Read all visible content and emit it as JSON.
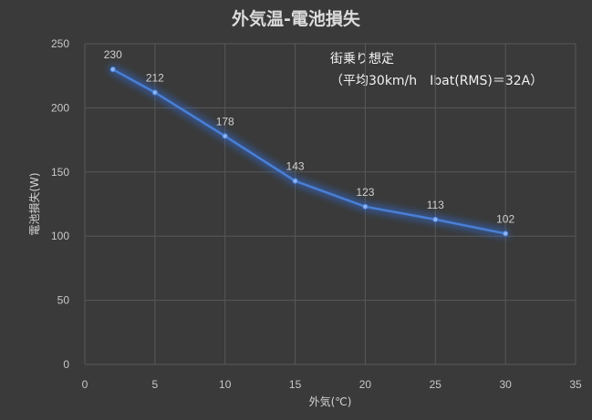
{
  "chart_data": {
    "type": "line",
    "title": "外気温-電池損失",
    "annotation": [
      "街乗り想定",
      "（平均30km/h　Ibat(RMS)＝32A）"
    ],
    "xlabel": "外気(℃)",
    "ylabel": "電池損失(W)",
    "x": [
      2,
      5,
      10,
      15,
      20,
      25,
      30
    ],
    "series": [
      {
        "values": [
          230,
          212,
          178,
          143,
          123,
          113,
          102
        ]
      }
    ],
    "data_labels": [
      "230",
      "212",
      "178",
      "143",
      "123",
      "113",
      "102"
    ],
    "xlim": [
      0,
      35
    ],
    "ylim": [
      0,
      250
    ],
    "xticks": [
      0,
      5,
      10,
      15,
      20,
      25,
      30,
      35
    ],
    "yticks": [
      0,
      50,
      100,
      150,
      200,
      250
    ],
    "grid": true,
    "legend": "none",
    "colors": {
      "background": "#3a3a3a",
      "grid": "#585858",
      "line": "#4a7fd4",
      "glow": "#2f6fe0",
      "marker": "#8fb4f0",
      "text": "#c8c8c8"
    }
  }
}
